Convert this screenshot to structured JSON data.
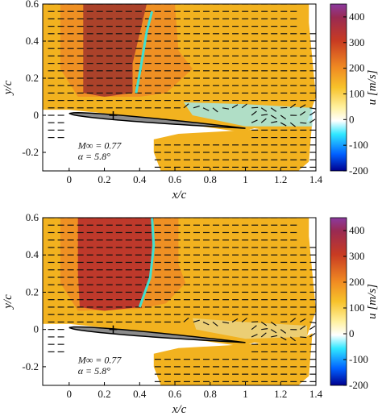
{
  "chart_data": [
    {
      "type": "heatmap",
      "subtype": "velocity field with vector arrows",
      "xlabel": "x/c",
      "ylabel": "y/c",
      "xlim": [
        -0.15,
        1.4
      ],
      "ylim": [
        -0.3,
        0.6
      ],
      "xticks": [
        "0",
        "0.2",
        "0.4",
        "0.6",
        "0.8",
        "1",
        "1.2",
        "1.4"
      ],
      "yticks": [
        "0.6",
        "0.4",
        "0.2",
        "0",
        "-0.2"
      ],
      "colorbar": {
        "label": "u [m/s]",
        "range": [
          -200,
          450
        ],
        "ticks": [
          "400",
          "300",
          "200",
          "100",
          "0",
          "-100",
          "-200"
        ]
      },
      "annotation": {
        "mach": "M∞ = 0.77",
        "alpha": "α = 5.8°"
      },
      "airfoil": {
        "leading_edge_x": 0.0,
        "trailing_edge_x": 1.0,
        "marker": "+",
        "marker_x": 0.25,
        "marker_y": 0.0
      },
      "shock_line": {
        "color": "#40e0d0",
        "x": [
          0.38,
          0.41,
          0.44,
          0.47
        ],
        "y": [
          0.12,
          0.28,
          0.45,
          0.56
        ]
      },
      "colors": {
        "freestream": "#f2b21f",
        "supersonic": "#a33a2b",
        "wake": "#9fe8f0"
      }
    },
    {
      "type": "heatmap",
      "subtype": "velocity field with vector arrows",
      "xlabel": "x/c",
      "ylabel": "y/c",
      "xlim": [
        -0.15,
        1.4
      ],
      "ylim": [
        -0.3,
        0.6
      ],
      "xticks": [
        "0",
        "0.2",
        "0.4",
        "0.6",
        "0.8",
        "1",
        "1.2",
        "1.4"
      ],
      "yticks": [
        "0.6",
        "0.4",
        "0.2",
        "0",
        "-0.2"
      ],
      "colorbar": {
        "label": "u [m/s]",
        "range": [
          -200,
          450
        ],
        "ticks": [
          "400",
          "300",
          "200",
          "100",
          "0",
          "-100",
          "-200"
        ]
      },
      "annotation": {
        "mach": "M∞ = 0.77",
        "alpha": "α = 5.8°"
      },
      "airfoil": {
        "leading_edge_x": 0.0,
        "trailing_edge_x": 1.0,
        "marker": "+",
        "marker_x": 0.25,
        "marker_y": 0.0
      },
      "shock_line": {
        "color": "#40e0d0",
        "x": [
          0.4,
          0.46,
          0.48,
          0.47
        ],
        "y": [
          0.12,
          0.28,
          0.45,
          0.6
        ]
      },
      "colors": {
        "freestream": "#f2b21f",
        "supersonic": "#b8302c",
        "wake": "#e9d58a"
      }
    }
  ]
}
